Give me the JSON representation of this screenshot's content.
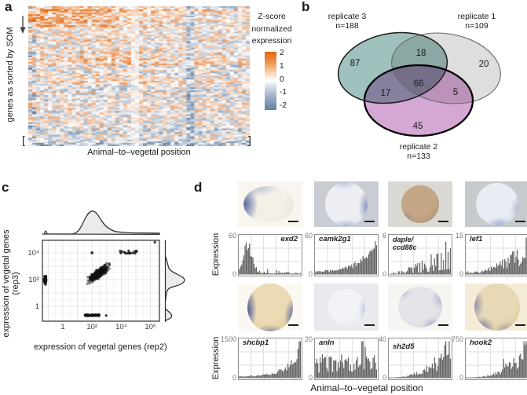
{
  "panels": {
    "a_label": "a",
    "b_label": "b",
    "c_label": "c",
    "d_label": "d"
  },
  "panel_a": {
    "y_axis_label": "genes as sorted by SOM",
    "x_axis_label": "Animal–to–vegetal position",
    "bracket_left": "[",
    "bracket_right": "]",
    "legend": {
      "title": "Z-score\nnormalized\nexpression",
      "tick_labels": [
        "2",
        "1",
        "0",
        "-1",
        "-2"
      ],
      "color_high": "#e2650e",
      "color_mid": "#ffffff",
      "color_low": "#64809f"
    },
    "chart_data": {
      "type": "heatmap",
      "rows": 88,
      "cols": 56,
      "x_meaning": "animal-to-vegetal position bins",
      "y_meaning": "genes sorted by self-organizing map (SOM)",
      "value": "Z-score normalized expression",
      "value_range": [
        -2,
        2
      ],
      "pattern": "top ~15% of rows animal-enriched (orange at left), middle mottled, lower rows more blue/vegetal; bluish vertical band near 72% width; pale band near 47%",
      "seed": 7
    }
  },
  "panel_b": {
    "sets": [
      {
        "label": "replicate 3",
        "count_label": "n=188",
        "unique_value": "87",
        "color": "#8fb6b2"
      },
      {
        "label": "replicate 1",
        "count_label": "n=109",
        "unique_value": "20",
        "color": "#dcdcdc"
      },
      {
        "label": "replicate 2",
        "count_label": "n=133",
        "unique_value": "45",
        "color": "#c585c5"
      }
    ],
    "overlaps": {
      "r3_r1": "18",
      "r3_r2": "17",
      "r1_r2": "5",
      "all_three": "66"
    },
    "chart_data": {
      "type": "venn",
      "sets": [
        {
          "name": "replicate 3",
          "n": 188
        },
        {
          "name": "replicate 1",
          "n": 109
        },
        {
          "name": "replicate 2",
          "n": 133
        }
      ],
      "regions": {
        "rep3_only": 87,
        "rep1_only": 20,
        "rep2_only": 45,
        "rep3_rep1": 18,
        "rep3_rep2": 17,
        "rep1_rep2": 5,
        "all": 66
      }
    }
  },
  "panel_c": {
    "x_axis_label": "expression of vegetal genes (rep2)",
    "y_axis_label": "expression of vegetal genes (rep3)",
    "x_tick_labels": [
      "1",
      "10²",
      "10⁴",
      "10⁶"
    ],
    "y_tick_labels": [
      "10⁴",
      "10²",
      "1"
    ],
    "chart_data": {
      "type": "scatter",
      "x_scale": "log",
      "y_scale": "log",
      "x_range_log": [
        -1.4,
        6.6
      ],
      "y_range_log": [
        -0.9,
        5.0
      ],
      "point_color": "#111111",
      "clusters": [
        {
          "name": "main_diagonal",
          "n": 430,
          "logx_center": 2.45,
          "logx_sd": 0.45,
          "logy_model": "0.55 + 0.78*logx",
          "logy_sd": 0.28
        },
        {
          "name": "high_expression",
          "n": 15,
          "logx_range": [
            3.9,
            5.2
          ],
          "logy_center": 4.0,
          "logy_sd": 0.1
        },
        {
          "name": "x_axis_floor",
          "n": 55,
          "logx": "below axis min",
          "logy_center": 2.0,
          "logy_sd": 0.3
        },
        {
          "name": "y_axis_floor",
          "n": 52,
          "logy": "below axis min",
          "logx_range": [
            1.5,
            2.65
          ]
        },
        {
          "name": "corner_outlier",
          "n": 1,
          "logx": 6.3,
          "logy": 4.8
        },
        {
          "name": "single_outlier",
          "n": 1,
          "logx": 2.0,
          "logy": 4.0
        }
      ],
      "marginals": "kernel density of rep2 on top, rep3 on right; main mode near 10^2 with small mode at axis floor",
      "seed": 11
    }
  },
  "panel_d": {
    "row_y_label": "Expression",
    "x_axis_label": "Animal–to–vegetal position",
    "chart_data": [
      {
        "type": "bar",
        "label": "exd2",
        "ymax": "60",
        "ymin": "0",
        "ylim": [
          0,
          60
        ],
        "n_bars": 55,
        "profile": "animal_peak_decay",
        "trend": "high near animal pole, decays vegetally",
        "seed": 21,
        "embryo": {
          "bg": "#f8f6ef",
          "body": "#f3f0e7",
          "shade": "#e6e1d2",
          "w": 64,
          "h": 46,
          "dx": -4,
          "stains": [
            {
              "size": "38% 85%",
              "pos": "4% 50%",
              "color": "rgba(88,100,160,0.95)"
            },
            {
              "size": "60% 40%",
              "pos": "30% 4%",
              "color": "rgba(130,140,185,0.45)"
            }
          ]
        }
      },
      {
        "type": "bar",
        "label": "camk2g1",
        "ymax": "60",
        "ymin": "0",
        "ylim": [
          0,
          60
        ],
        "n_bars": 55,
        "profile": "exp_increase",
        "trend": "increases toward vegetal pole",
        "seed": 22,
        "embryo": {
          "bg": "#c9cdd3",
          "body": "#edeff4",
          "shade": "#dde1ea",
          "w": 54,
          "h": 56,
          "dx": 0,
          "stains": [
            {
              "size": "30% 60%",
              "pos": "98% 55%",
              "color": "rgba(120,130,180,0.8)"
            },
            {
              "size": "55% 25%",
              "pos": "50% 101%",
              "color": "rgba(130,140,190,0.6)"
            },
            {
              "size": "50% 25%",
              "pos": "45% 0%",
              "color": "rgba(140,150,195,0.5)"
            }
          ]
        }
      },
      {
        "type": "bar",
        "label": "daple/\nccd88c",
        "ymax": "6",
        "ymin": "0",
        "ylim": [
          0,
          6
        ],
        "n_bars": 55,
        "profile": "spiky_increase",
        "trend": "sparse, increasing toward vegetal pole",
        "seed": 23,
        "embryo": {
          "bg": "#dad8d2",
          "body": "#c2a686",
          "shade": "#aa8e6e",
          "w": 48,
          "h": 48,
          "dx": 0,
          "stains": [
            {
              "size": "35% 30%",
              "pos": "12% 88%",
              "color": "rgba(130,115,150,0.5)"
            }
          ]
        }
      },
      {
        "type": "bar",
        "label": "lef1",
        "ymax": "15",
        "ymin": "0",
        "ylim": [
          0,
          15
        ],
        "n_bars": 55,
        "profile": "late_increase",
        "trend": "increases toward vegetal pole",
        "seed": 24,
        "embryo": {
          "bg": "#c6cacd",
          "body": "#e9ecf3",
          "shade": "#ccd3e2",
          "w": 54,
          "h": 54,
          "dx": 0,
          "stains": [
            {
              "size": "45% 30%",
              "pos": "55% 100%",
              "color": "rgba(125,135,185,0.6)"
            },
            {
              "size": "30% 45%",
              "pos": "100% 60%",
              "color": "rgba(135,145,190,0.5)"
            }
          ]
        }
      },
      {
        "type": "bar",
        "label": "shcbp1",
        "ymax": "1500",
        "ymin": "0",
        "ylim": [
          0,
          1500
        ],
        "n_bars": 55,
        "profile": "strong_exp_increase",
        "trend": "strong vegetal enrichment",
        "seed": 25,
        "embryo": {
          "bg": "#faf8f1",
          "body": "#ebdab4",
          "shade": "#dcc794",
          "w": 58,
          "h": 61,
          "dx": 0,
          "stains": [
            {
              "size": "28% 75%",
              "pos": "2% 55%",
              "color": "rgba(70,85,150,0.9)"
            },
            {
              "size": "30% 60%",
              "pos": "100% 70%",
              "color": "rgba(75,90,155,0.85)"
            },
            {
              "size": "50% 25%",
              "pos": "50% 102%",
              "color": "rgba(80,95,160,0.6)"
            }
          ]
        }
      },
      {
        "type": "bar",
        "label": "anln",
        "ymax": "20",
        "ymin": "0",
        "ylim": [
          0,
          20
        ],
        "n_bars": 55,
        "profile": "uniform_noisy",
        "trend": "roughly uniform, noisy",
        "seed": 26,
        "embryo": {
          "bg": "#e9eaed",
          "body": "#f1f3f7",
          "shade": "#dfe3ec",
          "w": 48,
          "h": 47,
          "dx": 0,
          "stains": [
            {
              "size": "30% 55%",
              "pos": "100% 55%",
              "color": "rgba(160,170,210,0.5)"
            }
          ]
        }
      },
      {
        "type": "bar",
        "label": "sh2d5",
        "ymax": "40",
        "ymin": "0",
        "ylim": [
          0,
          40
        ],
        "n_bars": 55,
        "profile": "spiky_late",
        "trend": "spiky increase toward vegetal pole",
        "seed": 27,
        "embryo": {
          "bg": "#f6f5f1",
          "body": "#e7e4e9",
          "shade": "#d5d0da",
          "w": 56,
          "h": 52,
          "dx": 0,
          "stains": [
            {
              "size": "40% 30%",
              "pos": "80% 95%",
              "color": "rgba(140,125,175,0.55)"
            },
            {
              "size": "30% 40%",
              "pos": "95% 30%",
              "color": "rgba(150,135,180,0.45)"
            },
            {
              "size": "35% 30%",
              "pos": "10% 15%",
              "color": "rgba(150,140,180,0.4)"
            }
          ]
        }
      },
      {
        "type": "bar",
        "label": "hook2",
        "ymax": "750",
        "ymin": "0",
        "ylim": [
          0,
          750
        ],
        "n_bars": 55,
        "profile": "spiky_late2",
        "trend": "spiky increase toward vegetal pole",
        "seed": 28,
        "embryo": {
          "bg": "#f4ecd7",
          "body": "#e8d9b6",
          "shade": "#d9c491",
          "w": 58,
          "h": 60,
          "dx": 0,
          "stains": [
            {
              "size": "45% 40%",
              "pos": "15% 95%",
              "color": "rgba(85,95,160,0.75)"
            },
            {
              "size": "30% 55%",
              "pos": "2% 45%",
              "color": "rgba(95,105,165,0.6)"
            },
            {
              "size": "40% 30%",
              "pos": "70% 100%",
              "color": "rgba(100,110,170,0.5)"
            }
          ]
        }
      }
    ]
  }
}
